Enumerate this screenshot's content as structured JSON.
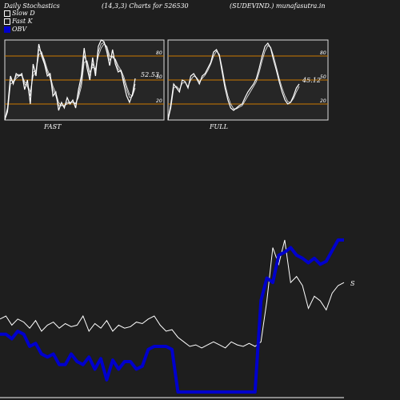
{
  "header": {
    "title": "Daily Stochastics",
    "params": "(14,3,3) Charts for 526530",
    "source": "(SUDEVIND.) munafasutra.in"
  },
  "legend": {
    "items": [
      {
        "label": "Slow  D",
        "color": "#ffffff"
      },
      {
        "label": "Fast K",
        "color": "#ffffff"
      },
      {
        "label": "OBV",
        "color": "#0000cc"
      }
    ]
  },
  "panels": {
    "fast_label": "FAST",
    "full_label": "FULL"
  },
  "colors": {
    "background": "#1e1e1e",
    "panel_bg": "#262626",
    "level_line": "#cc7a00",
    "stoch_line": "#ffffff",
    "obv_line": "#0000cc",
    "price_line": "#ffffff"
  },
  "chart_data": [
    {
      "type": "line",
      "name": "fast-stochastics",
      "ylim": [
        0,
        100
      ],
      "levels": [
        20,
        50,
        80
      ],
      "level_labels": [
        "20",
        "50",
        "80"
      ],
      "last_value_label": "52.53",
      "series": [
        {
          "values": [
            0,
            15,
            55,
            45,
            58,
            55,
            58,
            38,
            50,
            20,
            70,
            55,
            95,
            80,
            70,
            55,
            58,
            30,
            35,
            12,
            22,
            15,
            28,
            20,
            25,
            15,
            38,
            55,
            90,
            65,
            50,
            78,
            55,
            92,
            100,
            98,
            85,
            68,
            88,
            70,
            60,
            62,
            45,
            30,
            22,
            32,
            52
          ]
        },
        {
          "values": [
            0,
            12,
            50,
            48,
            55,
            57,
            55,
            45,
            42,
            30,
            60,
            62,
            88,
            85,
            72,
            60,
            52,
            38,
            30,
            18,
            18,
            18,
            22,
            22,
            22,
            20,
            32,
            48,
            80,
            72,
            55,
            70,
            62,
            85,
            95,
            97,
            90,
            75,
            80,
            75,
            64,
            60,
            50,
            38,
            28,
            30,
            45
          ]
        },
        {
          "values": [
            0,
            10,
            45,
            47,
            52,
            55,
            56,
            48,
            44,
            35,
            55,
            60,
            82,
            84,
            75,
            63,
            55,
            42,
            34,
            22,
            18,
            18,
            20,
            22,
            22,
            21,
            28,
            42,
            72,
            74,
            60,
            66,
            64,
            80,
            90,
            95,
            92,
            80,
            78,
            76,
            68,
            62,
            54,
            42,
            32,
            30,
            40
          ]
        }
      ]
    },
    {
      "type": "line",
      "name": "full-stochastics",
      "ylim": [
        0,
        100
      ],
      "levels": [
        20,
        50,
        80
      ],
      "level_labels": [
        "20",
        "50",
        "80"
      ],
      "last_value_label": "45.12",
      "series": [
        {
          "values": [
            0,
            20,
            45,
            40,
            35,
            50,
            48,
            40,
            55,
            58,
            52,
            45,
            55,
            58,
            65,
            72,
            85,
            88,
            80,
            60,
            40,
            25,
            15,
            12,
            15,
            18,
            20,
            28,
            35,
            40,
            45,
            52,
            65,
            80,
            92,
            96,
            90,
            75,
            62,
            48,
            35,
            25,
            20,
            22,
            30,
            40,
            45
          ]
        },
        {
          "values": [
            0,
            15,
            40,
            42,
            38,
            46,
            47,
            42,
            50,
            55,
            53,
            48,
            52,
            56,
            62,
            70,
            80,
            86,
            82,
            65,
            45,
            30,
            20,
            14,
            14,
            16,
            18,
            24,
            30,
            36,
            42,
            48,
            60,
            74,
            86,
            93,
            91,
            80,
            66,
            52,
            40,
            30,
            23,
            22,
            27,
            35,
            42
          ]
        }
      ]
    },
    {
      "type": "line",
      "name": "price-and-obv",
      "series": [
        {
          "name": "OBV",
          "values": [
            38,
            38,
            35,
            40,
            38,
            30,
            32,
            25,
            23,
            25,
            18,
            18,
            25,
            20,
            18,
            23,
            15,
            22,
            8,
            21,
            15,
            20,
            20,
            15,
            17,
            28,
            30,
            30,
            30,
            28,
            0,
            0,
            0,
            0,
            0,
            0,
            0,
            0,
            0,
            0,
            0,
            0,
            0,
            0,
            60,
            75,
            72,
            90,
            92,
            95,
            90,
            88,
            85,
            88,
            84,
            86,
            93,
            100,
            100
          ]
        },
        {
          "values": [
            48,
            50,
            44,
            48,
            46,
            42,
            47,
            40,
            44,
            46,
            42,
            45,
            43,
            44,
            50,
            40,
            45,
            42,
            47,
            40,
            44,
            42,
            43,
            46,
            45,
            48,
            50,
            44,
            40,
            41,
            36,
            33,
            30,
            31,
            29,
            31,
            33,
            31,
            29,
            33,
            31,
            30,
            32,
            30,
            33,
            60,
            95,
            84,
            100,
            72,
            76,
            70,
            55,
            63,
            60,
            54,
            65,
            70,
            72
          ]
        }
      ],
      "end_label": "S"
    }
  ]
}
